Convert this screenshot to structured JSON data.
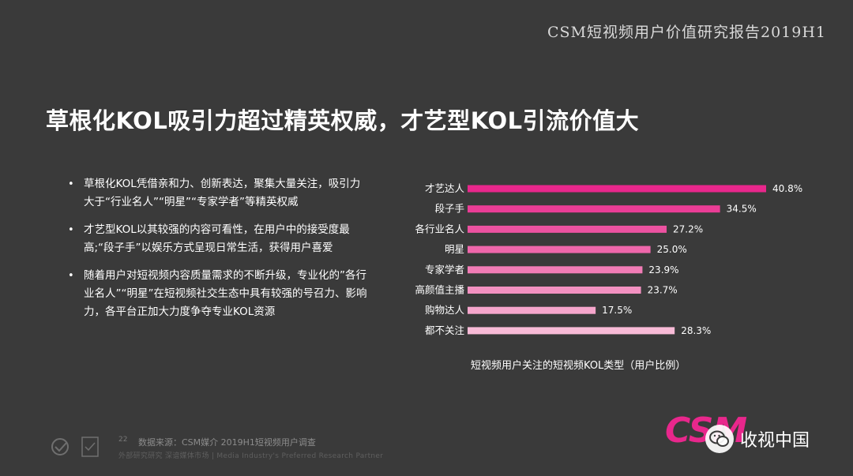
{
  "header": {
    "report_title": "CSM短视频用户价值研究报告2019H1"
  },
  "slide": {
    "title": "草根化KOL吸引力超过精英权威，才艺型KOL引流价值大",
    "bullets": [
      "草根化KOL凭借亲和力、创新表达，聚集大量关注，吸引力大于“行业名人”“明星”“专家学者”等精英权威",
      "才艺型KOL以其较强的内容可看性，在用户中的接受度最高;“段子手”以娱乐方式呈现日常生活，获得用户喜爱",
      "随着用户对短视频内容质量需求的不断升级，专业化的”各行业名人”“明星”在短视频社交生态中具有较强的号召力、影响力，各平台正加大力度争夺专业KOL资源"
    ]
  },
  "chart_data": {
    "type": "bar",
    "orientation": "horizontal",
    "title": "短视频用户关注的短视频KOL类型（用户比例）",
    "categories": [
      "才艺达人",
      "段子手",
      "各行业名人",
      "明星",
      "专家学者",
      "高颜值主播",
      "购物达人",
      "都不关注"
    ],
    "values": [
      40.8,
      34.5,
      27.2,
      25.0,
      23.9,
      23.7,
      17.5,
      28.3
    ],
    "value_labels": [
      "40.8%",
      "34.5%",
      "27.2%",
      "25.0%",
      "23.9%",
      "23.7%",
      "17.5%",
      "28.3%"
    ],
    "xlim": [
      0,
      40.8
    ],
    "colors": [
      "#e8278c",
      "#ea3d96",
      "#ec52a0",
      "#ef67ab",
      "#f17cb6",
      "#f391c1",
      "#f6a6cc",
      "#f8bbd7"
    ],
    "grid": false,
    "legend": "none"
  },
  "footer": {
    "page_num": "22",
    "source": "数据来源：CSM媒介 2019H1短视频用户调查",
    "tagline": "外部研究研究 深谙媒体市场 | Media Industry's Preferred Research Partner",
    "brand": "CSM",
    "wechat_name": "收视中国"
  }
}
